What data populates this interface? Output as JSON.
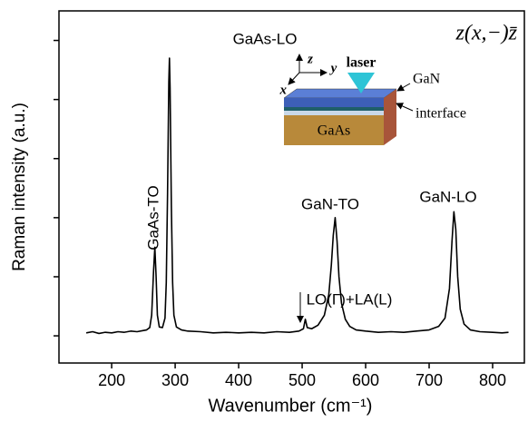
{
  "chart_data": {
    "type": "line",
    "x_label": "Wavenumber (cm⁻¹)",
    "y_label": "Raman intensity (a.u.)",
    "formula": "z(x,−)z̄",
    "xlim": [
      117,
      850
    ],
    "xticks": [
      200,
      300,
      400,
      500,
      600,
      700,
      800
    ],
    "ylim": [
      -0.46,
      5.5
    ],
    "yticks": [
      0,
      1,
      2,
      3,
      4,
      5
    ],
    "ytick_labels": false,
    "series": [
      {
        "color": "#000000",
        "x": [
          160,
          170,
          180,
          190,
          200,
          210,
          220,
          230,
          240,
          250,
          255,
          260,
          263,
          266,
          268,
          270,
          272,
          275,
          280,
          284,
          286,
          288,
          290,
          291,
          292,
          294,
          296,
          298,
          302,
          310,
          320,
          340,
          360,
          380,
          400,
          420,
          440,
          460,
          480,
          495,
          502,
          505,
          508,
          515,
          525,
          535,
          542,
          546,
          549,
          552,
          555,
          558,
          562,
          568,
          575,
          585,
          600,
          620,
          640,
          660,
          680,
          700,
          715,
          725,
          732,
          736,
          739,
          742,
          745,
          749,
          755,
          765,
          780,
          800,
          815,
          825
        ],
        "values": [
          0.05,
          0.07,
          0.04,
          0.06,
          0.05,
          0.07,
          0.06,
          0.08,
          0.07,
          0.09,
          0.1,
          0.14,
          0.35,
          1.1,
          1.5,
          1.0,
          0.35,
          0.15,
          0.14,
          0.3,
          0.9,
          2.4,
          4.3,
          4.7,
          4.2,
          2.2,
          0.9,
          0.35,
          0.15,
          0.1,
          0.08,
          0.07,
          0.05,
          0.06,
          0.05,
          0.06,
          0.05,
          0.07,
          0.06,
          0.08,
          0.12,
          0.28,
          0.14,
          0.12,
          0.18,
          0.35,
          0.7,
          1.2,
          1.7,
          2.0,
          1.6,
          1.0,
          0.55,
          0.28,
          0.16,
          0.1,
          0.08,
          0.06,
          0.07,
          0.06,
          0.08,
          0.1,
          0.16,
          0.3,
          0.8,
          1.6,
          2.1,
          1.8,
          1.0,
          0.45,
          0.2,
          0.1,
          0.07,
          0.06,
          0.05,
          0.06
        ]
      }
    ],
    "annotations": [
      "GaAs-LO",
      "GaAs-TO",
      "GaN-TO",
      "GaN-LO",
      "LO(Γ)+LA(L)"
    ],
    "inset": {
      "laser": "laser",
      "z": "z",
      "y": "y",
      "x": "x",
      "layer_top": "GaN",
      "layer_interface": "interface",
      "substrate": "GaAs"
    }
  }
}
